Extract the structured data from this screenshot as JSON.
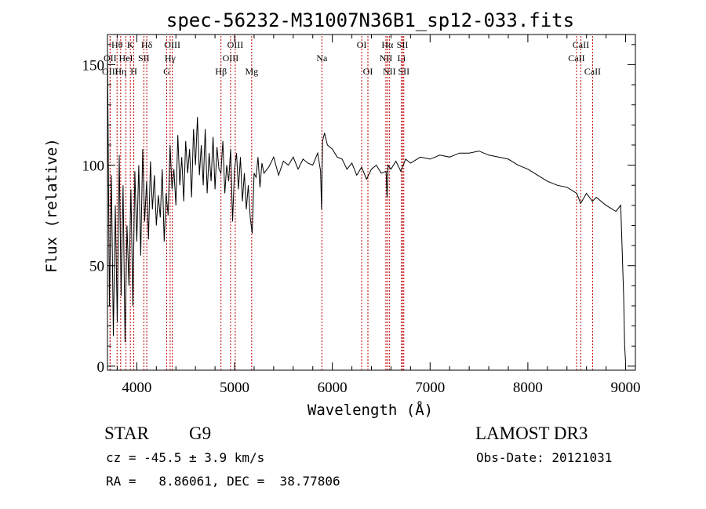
{
  "chart_data": {
    "type": "line",
    "title": "spec-56232-M31007N36B1_sp12-033.fits",
    "xlabel": "Wavelength (Å)",
    "ylabel": "Flux (relative)",
    "xlim": [
      3700,
      9100
    ],
    "ylim": [
      -2,
      165
    ],
    "xticks": [
      4000,
      5000,
      6000,
      7000,
      8000,
      9000
    ],
    "xtick_labels": [
      "4000",
      "5000",
      "6000",
      "7000",
      "8000",
      "9000"
    ],
    "yticks": [
      0,
      50,
      100,
      150
    ],
    "ytick_labels": [
      "0",
      "50",
      "100",
      "150"
    ],
    "grid": false,
    "series": [
      {
        "name": "spectrum",
        "color": "#000000",
        "x": [
          3700,
          3720,
          3740,
          3760,
          3780,
          3800,
          3820,
          3840,
          3860,
          3880,
          3900,
          3920,
          3940,
          3960,
          3980,
          4000,
          4020,
          4040,
          4060,
          4080,
          4100,
          4120,
          4140,
          4160,
          4180,
          4200,
          4220,
          4240,
          4260,
          4280,
          4300,
          4320,
          4340,
          4360,
          4380,
          4400,
          4420,
          4440,
          4460,
          4480,
          4500,
          4520,
          4540,
          4560,
          4580,
          4600,
          4620,
          4640,
          4660,
          4680,
          4700,
          4720,
          4740,
          4760,
          4780,
          4800,
          4820,
          4840,
          4860,
          4880,
          4900,
          4920,
          4940,
          4960,
          4980,
          5000,
          5020,
          5040,
          5060,
          5080,
          5100,
          5120,
          5140,
          5160,
          5180,
          5200,
          5220,
          5240,
          5260,
          5280,
          5300,
          5350,
          5400,
          5450,
          5500,
          5550,
          5600,
          5650,
          5700,
          5750,
          5800,
          5850,
          5880,
          5890,
          5900,
          5920,
          5950,
          6000,
          6050,
          6100,
          6150,
          6200,
          6250,
          6300,
          6350,
          6400,
          6450,
          6500,
          6550,
          6560,
          6570,
          6600,
          6650,
          6700,
          6750,
          6800,
          6900,
          7000,
          7100,
          7200,
          7300,
          7400,
          7500,
          7600,
          7700,
          7800,
          7900,
          8000,
          8100,
          8200,
          8300,
          8400,
          8500,
          8540,
          8600,
          8660,
          8700,
          8800,
          8900,
          8950,
          8980,
          8990,
          9000
        ],
        "y": [
          158,
          30,
          95,
          15,
          80,
          22,
          105,
          35,
          90,
          12,
          70,
          40,
          88,
          30,
          97,
          62,
          100,
          55,
          108,
          72,
          92,
          63,
          102,
          78,
          95,
          70,
          85,
          74,
          98,
          62,
          86,
          75,
          110,
          88,
          98,
          80,
          115,
          90,
          104,
          82,
          112,
          96,
          108,
          84,
          118,
          100,
          124,
          95,
          110,
          90,
          118,
          86,
          106,
          92,
          114,
          88,
          109,
          98,
          96,
          112,
          86,
          100,
          92,
          108,
          72,
          98,
          106,
          88,
          104,
          82,
          96,
          78,
          90,
          74,
          66,
          96,
          94,
          104,
          89,
          101,
          96,
          99,
          104,
          95,
          102,
          100,
          104,
          98,
          103,
          101,
          100,
          106,
          97,
          78,
          112,
          116,
          110,
          108,
          104,
          103,
          98,
          101,
          95,
          99,
          93,
          98,
          100,
          96,
          97,
          84,
          100,
          98,
          102,
          97,
          103,
          101,
          104,
          103,
          105,
          104,
          106,
          106,
          107,
          105,
          104,
          103,
          100,
          98,
          95,
          92,
          90,
          89,
          86,
          81,
          86,
          82,
          84,
          80,
          77,
          80,
          35,
          10,
          2
        ]
      }
    ],
    "line_ids": [
      {
        "label": "Hθ",
        "x": 3798,
        "row": 1
      },
      {
        "label": "OII",
        "x": 3727,
        "row": 2
      },
      {
        "label": "OIII",
        "x": 3727,
        "row": 3
      },
      {
        "label": "K",
        "x": 3934,
        "row": 1
      },
      {
        "label": "HeI",
        "x": 3889,
        "row": 2
      },
      {
        "label": "Hη",
        "x": 3835,
        "row": 3
      },
      {
        "label": "Hδ",
        "x": 4102,
        "row": 1
      },
      {
        "label": "SII",
        "x": 4072,
        "row": 2
      },
      {
        "label": "H",
        "x": 3969,
        "row": 3
      },
      {
        "label": "OIII",
        "x": 4363,
        "row": 1
      },
      {
        "label": "Hγ",
        "x": 4341,
        "row": 2
      },
      {
        "label": "G",
        "x": 4305,
        "row": 3
      },
      {
        "label": "OIII",
        "x": 5007,
        "row": 1
      },
      {
        "label": "OIII",
        "x": 4959,
        "row": 2
      },
      {
        "label": "Hβ",
        "x": 4861,
        "row": 3
      },
      {
        "label": "Mg",
        "x": 5175,
        "row": 3
      },
      {
        "label": "Na",
        "x": 5893,
        "row": 2
      },
      {
        "label": "OI",
        "x": 6300,
        "row": 1
      },
      {
        "label": "OI",
        "x": 6364,
        "row": 3
      },
      {
        "label": "Hα",
        "x": 6563,
        "row": 1
      },
      {
        "label": "NII",
        "x": 6548,
        "row": 2
      },
      {
        "label": "NII",
        "x": 6583,
        "row": 3
      },
      {
        "label": "SII",
        "x": 6717,
        "row": 1
      },
      {
        "label": "Li",
        "x": 6708,
        "row": 2
      },
      {
        "label": "SII",
        "x": 6731,
        "row": 3
      },
      {
        "label": "CaII",
        "x": 8542,
        "row": 1
      },
      {
        "label": "CaII",
        "x": 8498,
        "row": 2
      },
      {
        "label": "CaII",
        "x": 8662,
        "row": 3
      }
    ],
    "line_color": "#c00000"
  },
  "info": {
    "object_class": "STAR",
    "subclass": "G9",
    "survey": "LAMOST DR3",
    "redshift": "cz = -45.5 ± 3.9 km/s",
    "obs_date": "Obs-Date: 20121031",
    "coords": "RA =   8.86061, DEC =  38.77806"
  }
}
